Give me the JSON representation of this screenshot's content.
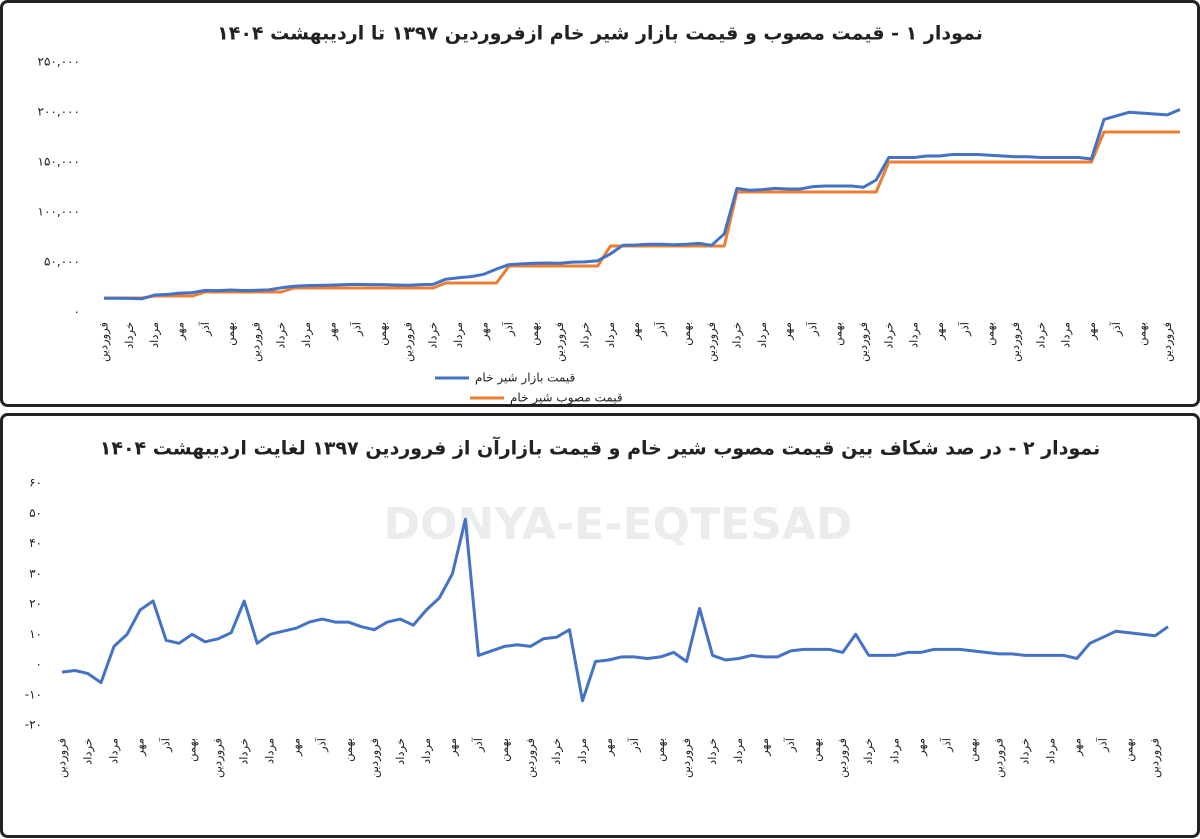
{
  "watermark": "DONYA-E-EQTESAD",
  "chart_data": [
    {
      "type": "line",
      "title": "نمودار ۱ - قیمت مصوب و قیمت بازار شیر خام ازفروردین ۱۳۹۷ تا اردیبهشت ۱۴۰۴",
      "categories": [
        "فروردین",
        null,
        "خرداد",
        null,
        "مرداد",
        null,
        "مهر",
        null,
        "آذر",
        null,
        "بهمن",
        null,
        "فروردین",
        null,
        "خرداد",
        null,
        "مرداد",
        null,
        "مهر",
        null,
        "آذر",
        null,
        "بهمن",
        null,
        "فروردین",
        null,
        "خرداد",
        null,
        "مرداد",
        null,
        "مهر",
        null,
        "آذر",
        null,
        "بهمن",
        null,
        "فروردین",
        null,
        "خرداد",
        null,
        "مرداد",
        null,
        "مهر",
        null,
        "آذر",
        null,
        "بهمن",
        null,
        "فروردین",
        null,
        "خرداد",
        null,
        "مرداد",
        null,
        "مهر",
        null,
        "آذر",
        null,
        "بهمن",
        null,
        "فروردین",
        null,
        "خرداد",
        null,
        "مرداد",
        null,
        "مهر",
        null,
        "آذر",
        null,
        "بهمن",
        null,
        "فروردین",
        null,
        "خرداد",
        null,
        "مرداد",
        null,
        "مهر",
        null,
        "آذر",
        null,
        "بهمن",
        null,
        "فروردین",
        null
      ],
      "series": [
        {
          "name": "قیمت بازار شیر خام",
          "color": "#4472c4",
          "values": [
            13700,
            13700,
            13600,
            13200,
            17000,
            17600,
            18900,
            19400,
            21600,
            21400,
            22000,
            21500,
            21700,
            22100,
            24200,
            25700,
            26400,
            26600,
            26900,
            27400,
            27600,
            27400,
            27400,
            27000,
            26800,
            27400,
            27600,
            32800,
            34200,
            35400,
            37700,
            42900,
            47400,
            48100,
            48800,
            49000,
            48800,
            49900,
            50100,
            51300,
            58100,
            66700,
            67000,
            67700,
            67700,
            67300,
            67700,
            68600,
            66700,
            78200,
            123600,
            121800,
            122400,
            123600,
            123000,
            123000,
            125400,
            126000,
            126000,
            126000,
            124800,
            132000,
            154500,
            154500,
            154500,
            156000,
            156000,
            157500,
            157500,
            157500,
            156800,
            156000,
            155300,
            155300,
            154500,
            154500,
            154500,
            154500,
            153000,
            192600,
            196200,
            199800,
            198900,
            198000,
            197100,
            202500
          ]
        },
        {
          "name": "قیمت مصوب شیر خام",
          "color": "#ed7d31",
          "values": [
            14000,
            14000,
            14000,
            14000,
            16000,
            16000,
            16000,
            16000,
            20000,
            20000,
            20000,
            20000,
            20000,
            20000,
            20000,
            24000,
            24000,
            24000,
            24000,
            24000,
            24000,
            24000,
            24000,
            24000,
            24000,
            24000,
            24000,
            29000,
            29000,
            29000,
            29000,
            29000,
            46000,
            46000,
            46000,
            46000,
            46000,
            46000,
            46000,
            46000,
            66000,
            66000,
            66000,
            66000,
            66000,
            66000,
            66000,
            66000,
            66000,
            66000,
            120000,
            120000,
            120000,
            120000,
            120000,
            120000,
            120000,
            120000,
            120000,
            120000,
            120000,
            120000,
            150000,
            150000,
            150000,
            150000,
            150000,
            150000,
            150000,
            150000,
            150000,
            150000,
            150000,
            150000,
            150000,
            150000,
            150000,
            150000,
            150000,
            180000,
            180000,
            180000,
            180000,
            180000,
            180000,
            180000
          ]
        }
      ],
      "ylim": [
        0,
        250000
      ],
      "yticks": [
        {
          "value": 0,
          "label": "۰"
        },
        {
          "value": 50000,
          "label": "۵۰,۰۰۰"
        },
        {
          "value": 100000,
          "label": "۱۰۰,۰۰۰"
        },
        {
          "value": 150000,
          "label": "۱۵۰,۰۰۰"
        },
        {
          "value": 200000,
          "label": "۲۰۰,۰۰۰"
        },
        {
          "value": 250000,
          "label": "۲۵۰,۰۰۰"
        }
      ],
      "grid": false,
      "legend": "bottom"
    },
    {
      "type": "line",
      "title": "نمودار ۲ - در صد شکاف بین قیمت مصوب شیر خام و قیمت بازارآن از فروردین ۱۳۹۷ لغایت اردیبهشت ۱۴۰۴",
      "categories": [
        "فروردین",
        null,
        "خرداد",
        null,
        "مرداد",
        null,
        "مهر",
        null,
        "آذر",
        null,
        "بهمن",
        null,
        "فروردین",
        null,
        "خرداد",
        null,
        "مرداد",
        null,
        "مهر",
        null,
        "آذر",
        null,
        "بهمن",
        null,
        "فروردین",
        null,
        "خرداد",
        null,
        "مرداد",
        null,
        "مهر",
        null,
        "آذر",
        null,
        "بهمن",
        null,
        "فروردین",
        null,
        "خرداد",
        null,
        "مرداد",
        null,
        "مهر",
        null,
        "آذر",
        null,
        "بهمن",
        null,
        "فروردین",
        null,
        "خرداد",
        null,
        "مرداد",
        null,
        "مهر",
        null,
        "آذر",
        null,
        "بهمن",
        null,
        "فروردین",
        null,
        "خرداد",
        null,
        "مرداد",
        null,
        "مهر",
        null,
        "آذر",
        null,
        "بهمن",
        null,
        "فروردین",
        null,
        "خرداد",
        null,
        "مرداد",
        null,
        "مهر",
        null,
        "آذر",
        null,
        "بهمن",
        null,
        "فروردین",
        null
      ],
      "series": [
        {
          "color": "#4472c4",
          "values": [
            -2.5,
            -2,
            -3,
            -6,
            6,
            10,
            18,
            21,
            8,
            7,
            10,
            7.5,
            8.5,
            10.5,
            21,
            7,
            10,
            11,
            12,
            14,
            15,
            14,
            14,
            12.5,
            11.5,
            14,
            15,
            13,
            18,
            22,
            30,
            48,
            3,
            4.5,
            6,
            6.5,
            6,
            8.5,
            9,
            11.5,
            -12,
            1,
            1.5,
            2.5,
            2.5,
            2,
            2.5,
            4,
            1,
            18.5,
            3,
            1.5,
            2,
            3,
            2.5,
            2.5,
            4.5,
            5,
            5,
            5,
            4,
            10,
            3,
            3,
            3,
            4,
            4,
            5,
            5,
            5,
            4.5,
            4,
            3.5,
            3.5,
            3,
            3,
            3,
            3,
            2,
            7,
            9,
            11,
            10.5,
            10,
            9.5,
            12.5
          ]
        }
      ],
      "ylim": [
        -20,
        60
      ],
      "yticks": [
        {
          "value": -20,
          "label": "-۲۰"
        },
        {
          "value": -10,
          "label": "-۱۰"
        },
        {
          "value": 0,
          "label": "۰"
        },
        {
          "value": 10,
          "label": "۱۰"
        },
        {
          "value": 20,
          "label": "۲۰"
        },
        {
          "value": 30,
          "label": "۳۰"
        },
        {
          "value": 40,
          "label": "۴۰"
        },
        {
          "value": 50,
          "label": "۵۰"
        },
        {
          "value": 60,
          "label": "۶۰"
        }
      ],
      "grid": false
    }
  ]
}
